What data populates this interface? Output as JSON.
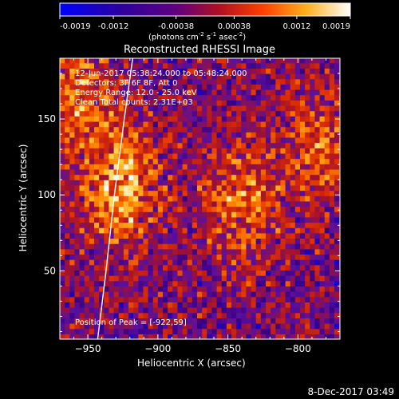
{
  "colorbar": {
    "ticks": [
      "-0.0019",
      "-0.0012",
      "-0.00038",
      "0.00038",
      "0.0012",
      "0.0019"
    ],
    "units_prefix": "(photons cm",
    "units_exp1": "-2",
    "units_mid": " s",
    "units_exp2": "-1",
    "units_mid2": " asec",
    "units_exp3": "-2",
    "units_suffix": ")"
  },
  "overlay": {
    "time_range": "12-Jun-2017 05:38:24.000 to 05:48:24.000",
    "detectors": "Detectors: 3F 6F 8F, Att 0",
    "energy": "Energy Range: 12.0 - 25.0 keV",
    "clean": "Clean     Total counts: 2.31E+03",
    "peak": "Position of Peak = [-922,59]"
  },
  "footer": {
    "timestamp": "8-Dec-2017 03:49"
  },
  "chart_data": {
    "type": "heatmap",
    "title": "Reconstructed RHESSI Image",
    "xlabel": "Heliocentric X (arcsec)",
    "ylabel": "Heliocentric Y (arcsec)",
    "xlim": [
      -970,
      -770
    ],
    "ylim": [
      5,
      190
    ],
    "x_ticks": [
      -950,
      -900,
      -850,
      -800
    ],
    "y_ticks": [
      50,
      100,
      150
    ],
    "color_range": [
      -0.0019,
      0.0019
    ],
    "colormap": [
      "#0000ff",
      "#3a0080",
      "#5a10a0",
      "#a01030",
      "#e03000",
      "#ff8000",
      "#ffd040",
      "#ffffff"
    ],
    "peak": [
      -922,
      59
    ],
    "limb": [
      [
        -943,
        5
      ],
      [
        -937,
        50
      ],
      [
        -931,
        100
      ],
      [
        -924,
        150
      ],
      [
        -918,
        190
      ]
    ],
    "sources": [
      {
        "x": -927,
        "y": 108,
        "peak_value": 0.0019
      },
      {
        "x": -842,
        "y": 95,
        "peak_value": 0.0014
      },
      {
        "x": -958,
        "y": 170,
        "peak_value": 0.0013
      },
      {
        "x": -785,
        "y": 130,
        "peak_value": 0.0011
      }
    ]
  }
}
